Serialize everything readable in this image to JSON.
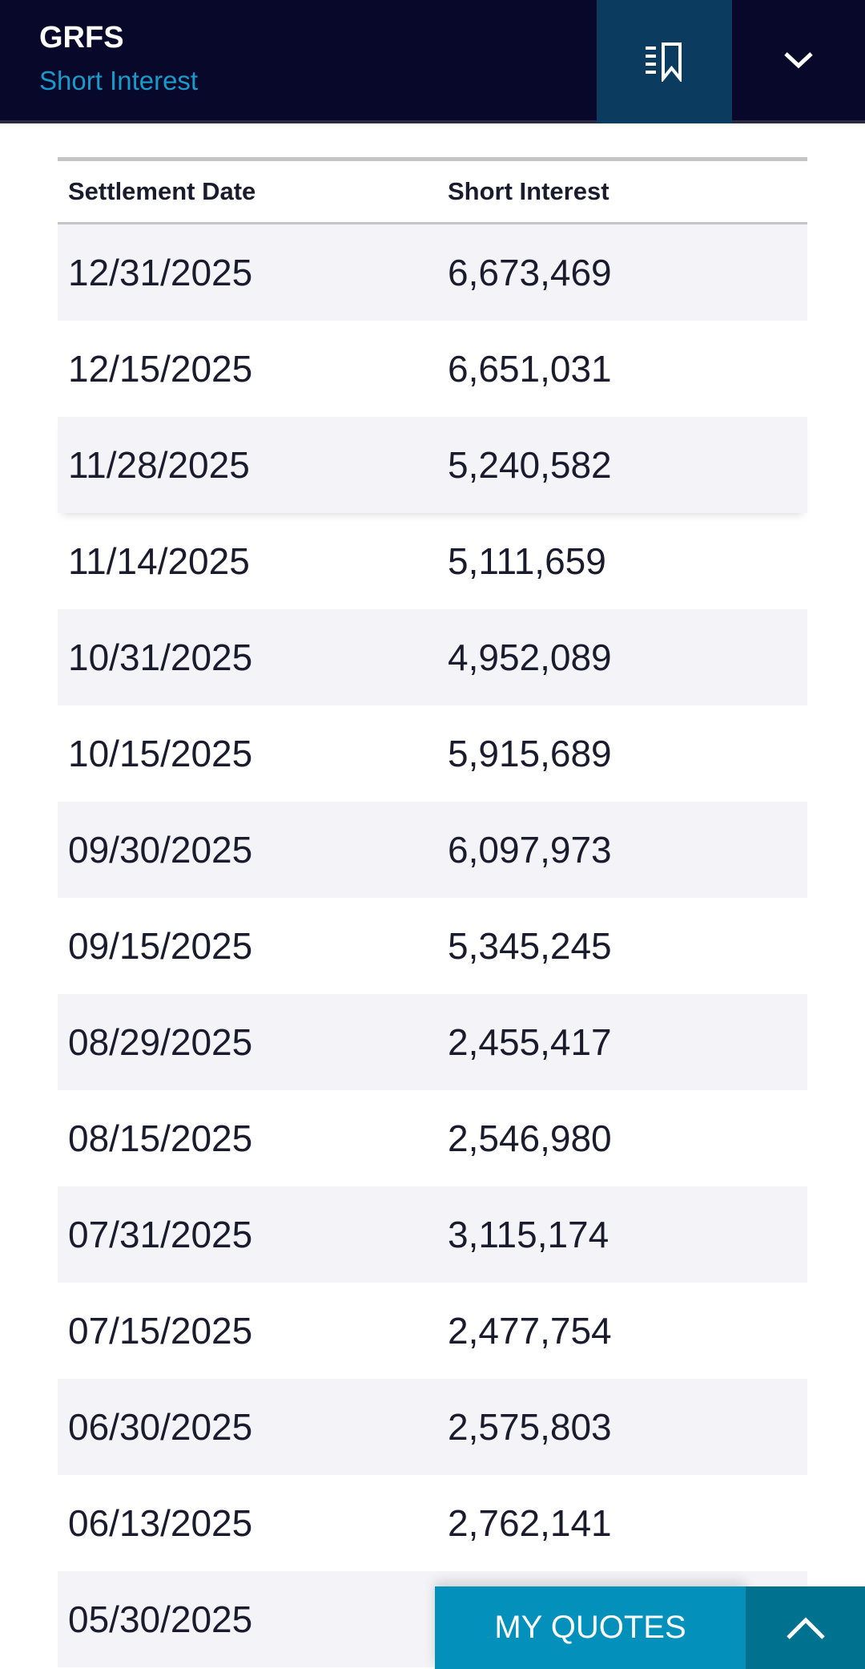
{
  "header": {
    "title": "GRFS",
    "subtitle": "Short Interest"
  },
  "table": {
    "columns": [
      "Settlement Date",
      "Short Interest"
    ],
    "rows": [
      [
        "12/31/2025",
        "6,673,469"
      ],
      [
        "12/15/2025",
        "6,651,031"
      ],
      [
        "11/28/2025",
        "5,240,582"
      ],
      [
        "11/14/2025",
        "5,111,659"
      ],
      [
        "10/31/2025",
        "4,952,089"
      ],
      [
        "10/15/2025",
        "5,915,689"
      ],
      [
        "09/30/2025",
        "6,097,973"
      ],
      [
        "09/15/2025",
        "5,345,245"
      ],
      [
        "08/29/2025",
        "2,455,417"
      ],
      [
        "08/15/2025",
        "2,546,980"
      ],
      [
        "07/31/2025",
        "3,115,174"
      ],
      [
        "07/15/2025",
        "2,477,754"
      ],
      [
        "06/30/2025",
        "2,575,803"
      ],
      [
        "06/13/2025",
        "2,762,141"
      ],
      [
        "05/30/2025",
        ""
      ]
    ]
  },
  "footer": {
    "my_quotes_label": "MY QUOTES"
  },
  "colors": {
    "header_bg": "#08082b",
    "accent": "#1a9ac8",
    "quotes_bg": "#0391bc",
    "quotes_toggle_bg": "#00718f"
  },
  "icons": {
    "watchlist": "bookmark-list-icon",
    "expand": "chevron-down-icon",
    "collapse": "chevron-up-icon"
  }
}
